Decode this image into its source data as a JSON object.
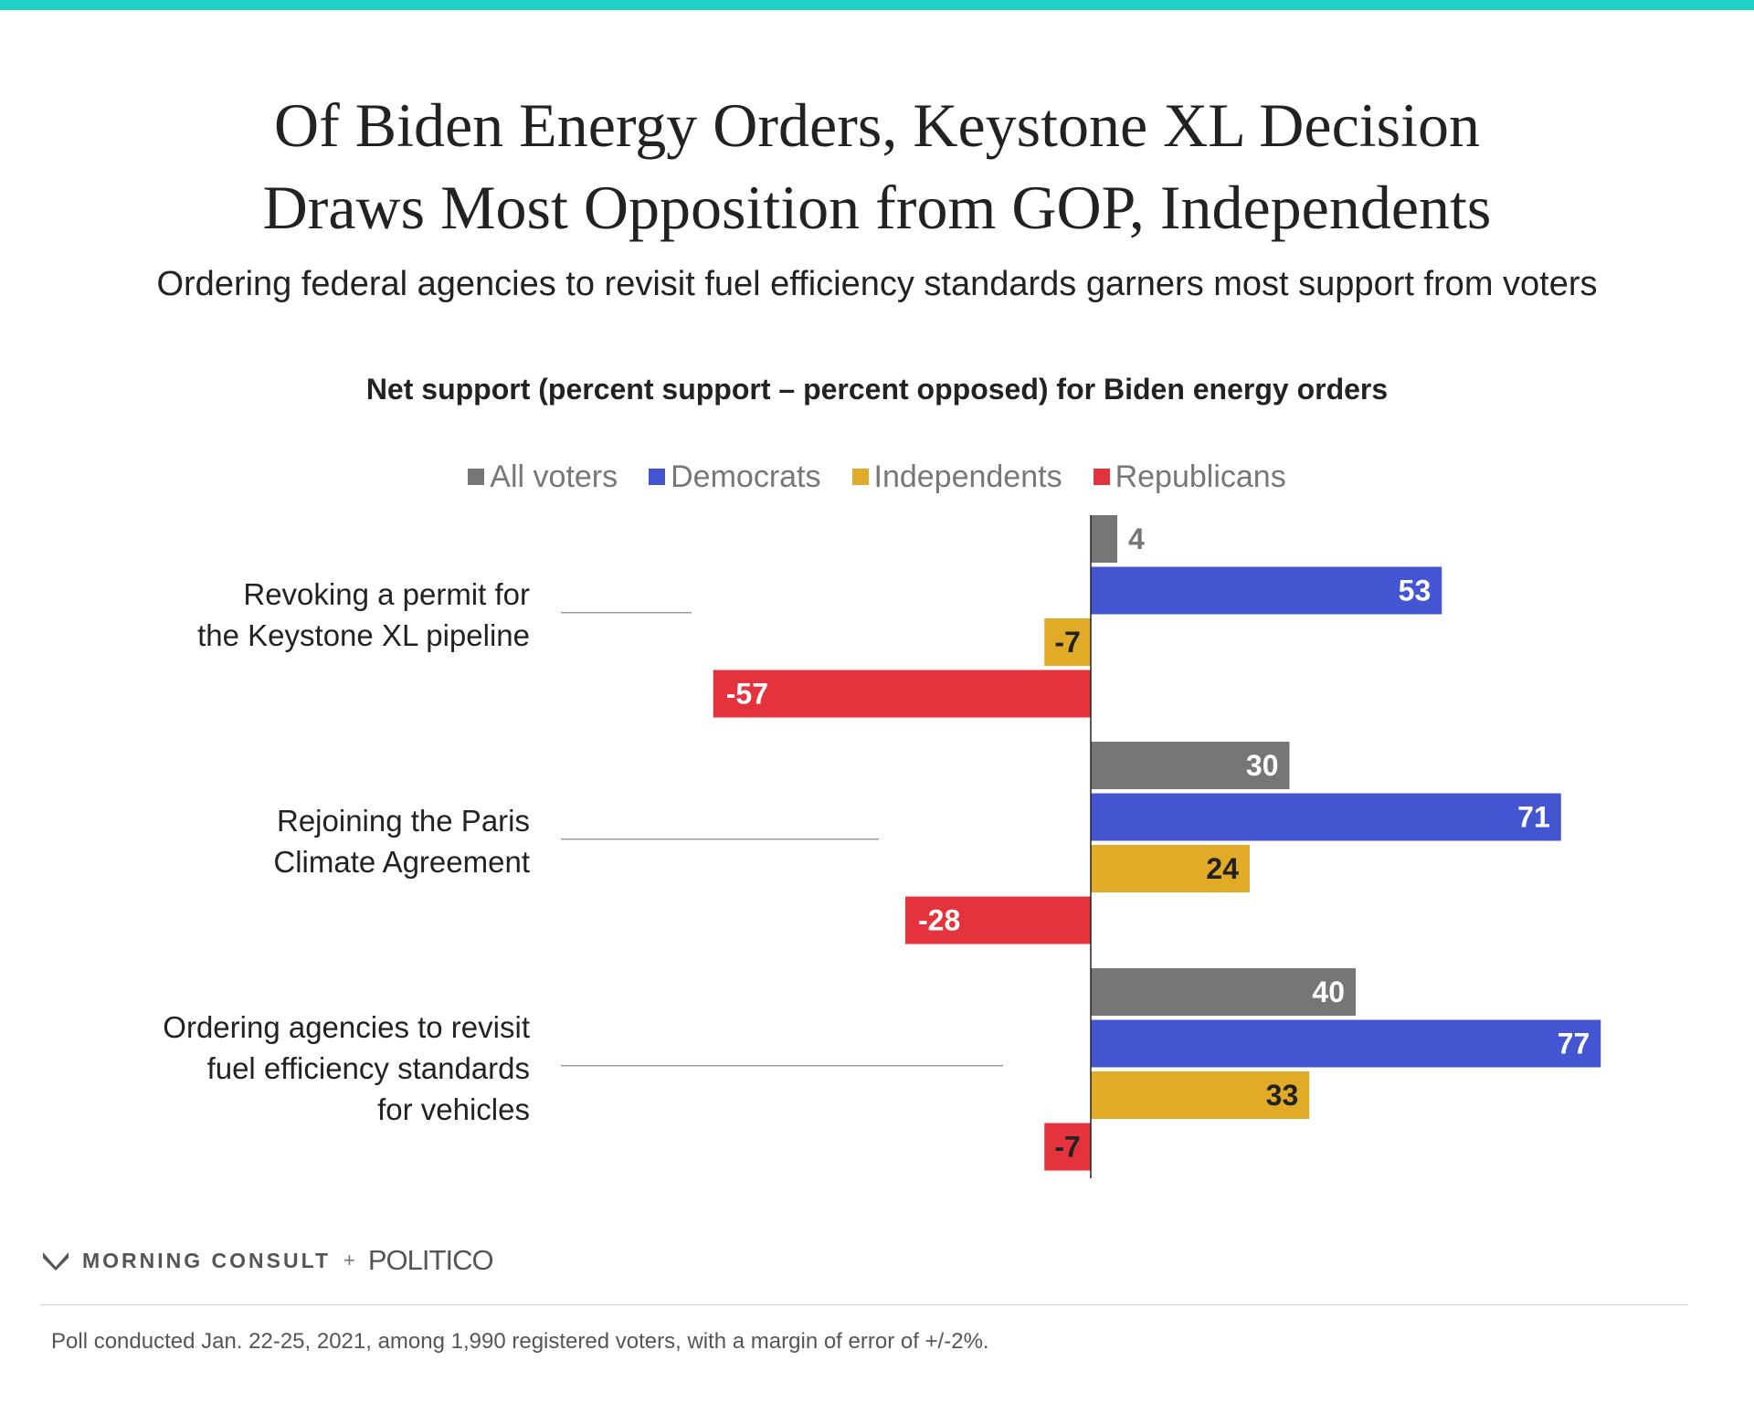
{
  "colors": {
    "accent_bar": "#1ed0c5",
    "all_voters": "#767676",
    "democrats": "#4455d2",
    "independents": "#e1ab27",
    "republicans": "#e4333c"
  },
  "title_lines": [
    "Of Biden Energy Orders, Keystone XL Decision",
    "Draws Most Opposition from GOP, Independents"
  ],
  "subtitle": "Ordering federal agencies to revisit fuel efficiency standards garners most support from voters",
  "chart_data": {
    "type": "bar",
    "orientation": "horizontal",
    "title": "Net support (percent support – percent opposed) for Biden energy orders",
    "categories": [
      [
        "Revoking a permit for",
        "the Keystone XL pipeline"
      ],
      [
        "Rejoining the Paris",
        "Climate Agreement"
      ],
      [
        "Ordering agencies to revisit",
        "fuel efficiency standards",
        "for vehicles"
      ]
    ],
    "series": [
      {
        "name": "All voters",
        "color": "#767676",
        "values": [
          4,
          30,
          40
        ]
      },
      {
        "name": "Democrats",
        "color": "#4455d2",
        "values": [
          53,
          71,
          77
        ]
      },
      {
        "name": "Independents",
        "color": "#e1ab27",
        "values": [
          -7,
          24,
          33
        ]
      },
      {
        "name": "Republicans",
        "color": "#e4333c",
        "values": [
          -57,
          -28,
          -7
        ]
      }
    ],
    "data_labels": true,
    "legend_position": "top-center",
    "grid": false,
    "xlim": [
      -57,
      77
    ]
  },
  "footer": {
    "logo_left": "MORNING CONSULT",
    "logo_plus": "+",
    "logo_right": "POLITICO",
    "note": "Poll conducted Jan. 22-25, 2021, among 1,990 registered voters, with a margin of error of +/-2%."
  }
}
